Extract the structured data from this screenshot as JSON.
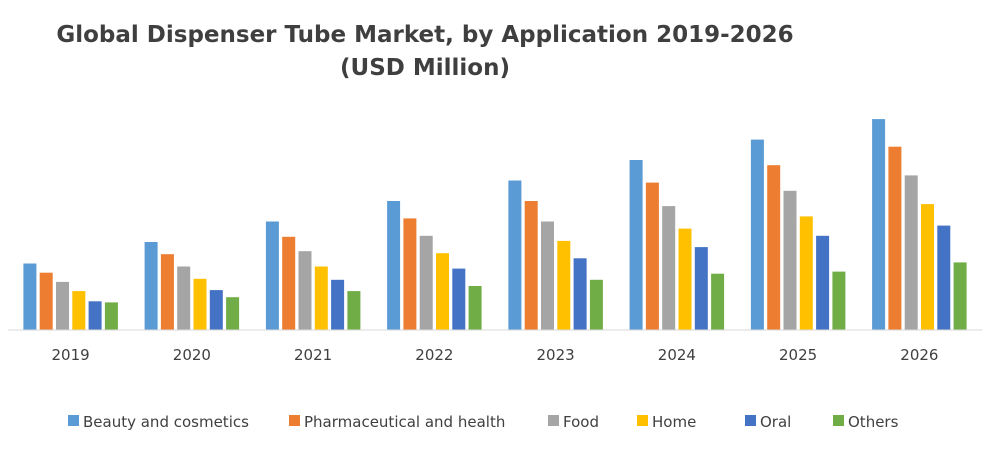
{
  "chart_data": {
    "type": "bar",
    "title": "Global Dispenser Tube Market, by Application 2019-2026",
    "subtitle": "(USD Million)",
    "categories": [
      "2019",
      "2020",
      "2021",
      "2022",
      "2023",
      "2024",
      "2025",
      "2026"
    ],
    "ylim": [
      0,
      210
    ],
    "grid": false,
    "legend_position": "bottom",
    "series": [
      {
        "name": "Beauty and cosmetics",
        "color": "#5b9bd5",
        "values": [
          65,
          86,
          106,
          126,
          146,
          166,
          186,
          206
        ]
      },
      {
        "name": "Pharmaceutical and health",
        "color": "#ed7d31",
        "values": [
          56,
          74,
          91,
          109,
          126,
          144,
          161,
          179
        ]
      },
      {
        "name": "Food",
        "color": "#a5a5a5",
        "values": [
          47,
          62,
          77,
          92,
          106,
          121,
          136,
          151
        ]
      },
      {
        "name": "Home",
        "color": "#ffc000",
        "values": [
          38,
          50,
          62,
          75,
          87,
          99,
          111,
          123
        ]
      },
      {
        "name": "Oral",
        "color": "#4472c4",
        "values": [
          28,
          39,
          49,
          60,
          70,
          81,
          92,
          102
        ]
      },
      {
        "name": "Others",
        "color": "#70ad47",
        "values": [
          27,
          32,
          38,
          43,
          49,
          55,
          57,
          66
        ]
      }
    ]
  }
}
